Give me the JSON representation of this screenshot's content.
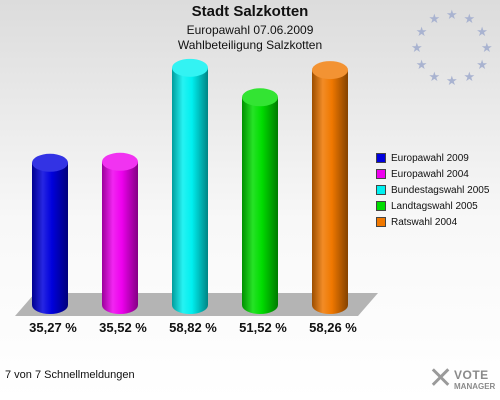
{
  "header": {
    "title": "Stadt Salzkotten",
    "subtitle": "Europawahl 07.06.2009",
    "subtitle2": "Wahlbeteiligung Salzkotten"
  },
  "footer": {
    "text": "7 von 7 Schnellmeldungen"
  },
  "logo": {
    "line1": "VOTE",
    "line2": "MANAGER",
    "icon": "vote-manager-x-logo"
  },
  "eu_stars": {
    "icon": "eu-star-circle-icon",
    "count": 12
  },
  "chart_data": {
    "type": "bar",
    "title": "Wahlbeteiligung Salzkotten",
    "categories": [
      "Europawahl 2009",
      "Europawahl 2004",
      "Bundestagswahl 2005",
      "Landtagswahl 2005",
      "Ratswahl 2004"
    ],
    "values": [
      35.27,
      35.52,
      58.82,
      51.52,
      58.26
    ],
    "value_labels": [
      "35,27 %",
      "35,52 %",
      "58,82 %",
      "51,52 %",
      "58,26 %"
    ],
    "colors": [
      "#0000dd",
      "#ee00ee",
      "#00f0f0",
      "#00dd00",
      "#f07800"
    ],
    "ylim": [
      0,
      62
    ],
    "grid": false,
    "legend_position": "right",
    "style": "3d-cylinder"
  }
}
